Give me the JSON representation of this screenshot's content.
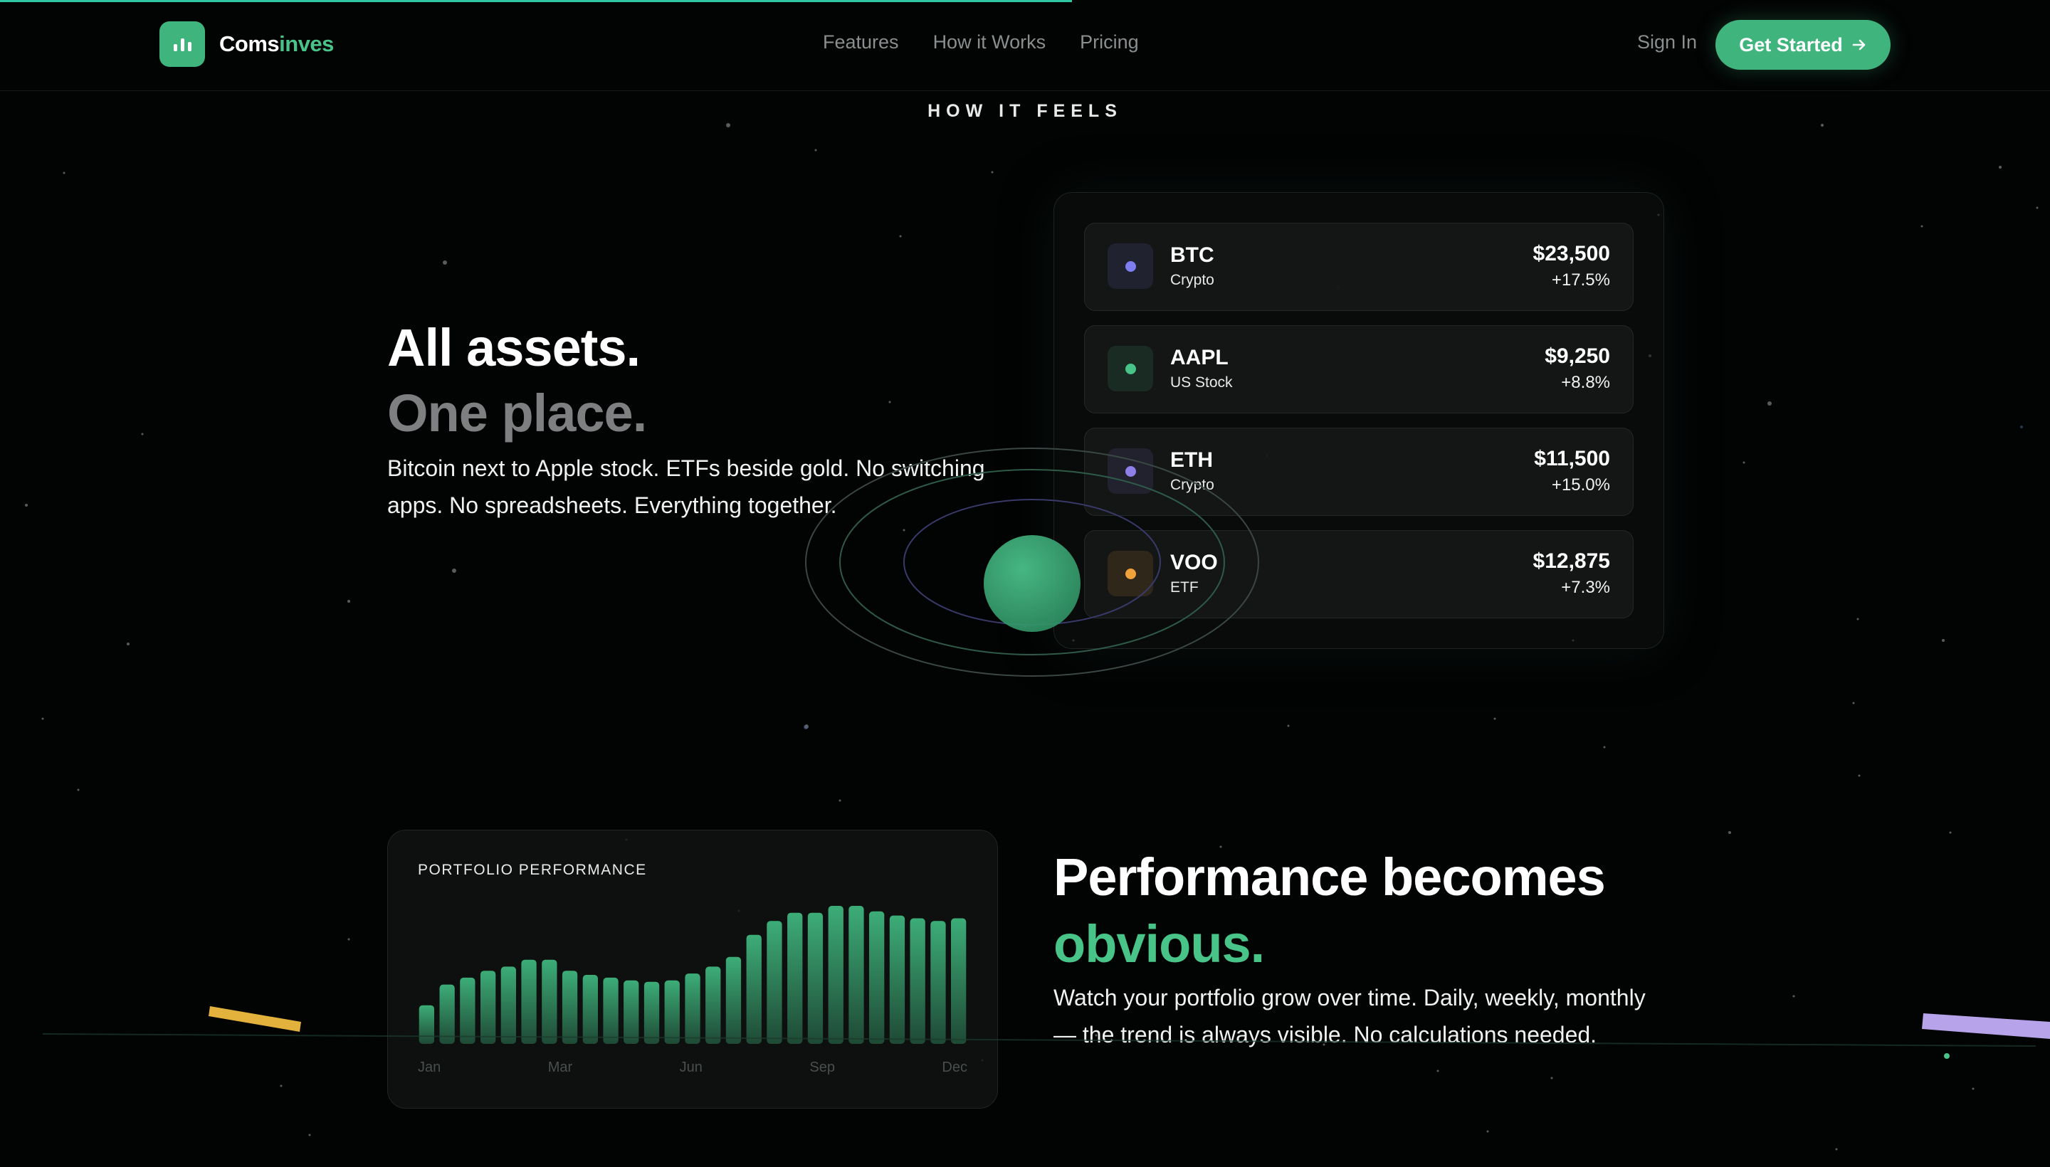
{
  "brand": {
    "name_part1": "Coms",
    "name_part2": "inves",
    "logo_icon": "bar-chart-icon",
    "accent": "#3fb57d"
  },
  "nav": {
    "items": [
      {
        "label": "Features"
      },
      {
        "label": "How it Works"
      },
      {
        "label": "Pricing"
      }
    ]
  },
  "auth": {
    "signin_label": "Sign In",
    "cta_label": "Get Started",
    "cta_icon": "arrow-right-icon"
  },
  "section_label": "HOW IT FEELS",
  "assets_section": {
    "headline_line1": "All assets.",
    "headline_line2": "One place.",
    "paragraph": "Bitcoin next to Apple stock. ETFs beside gold. No switching apps. No spreadsheets. Everything together.",
    "assets": [
      {
        "symbol": "BTC",
        "type": "Crypto",
        "price": "$23,500",
        "change": "+17.5%",
        "dot": "#7f7ef0"
      },
      {
        "symbol": "AAPL",
        "type": "US Stock",
        "price": "$9,250",
        "change": "+8.8%",
        "dot": "#49c489"
      },
      {
        "symbol": "ETH",
        "type": "Crypto",
        "price": "$11,500",
        "change": "+15.0%",
        "dot": "#8f7fe8"
      },
      {
        "symbol": "VOO",
        "type": "ETF",
        "price": "$12,875",
        "change": "+7.3%",
        "dot": "#f0a23a"
      }
    ]
  },
  "performance_section": {
    "card_title": "PORTFOLIO PERFORMANCE",
    "headline_line1": "Performance becomes",
    "headline_line2": "obvious.",
    "paragraph": "Watch your portfolio grow over time. Daily, weekly, monthly — the trend is always visible. No calculations needed.",
    "chart_data": {
      "type": "bar",
      "xtick_labels": [
        "Jan",
        "Mar",
        "Jun",
        "Sep",
        "Dec"
      ],
      "values": [
        0.28,
        0.43,
        0.48,
        0.53,
        0.56,
        0.61,
        0.61,
        0.53,
        0.5,
        0.48,
        0.46,
        0.45,
        0.46,
        0.51,
        0.56,
        0.63,
        0.79,
        0.89,
        0.95,
        0.95,
        1.0,
        1.0,
        0.96,
        0.93,
        0.91,
        0.89,
        0.91
      ],
      "ylim": [
        0,
        1
      ],
      "color": "#3fb57d"
    }
  }
}
